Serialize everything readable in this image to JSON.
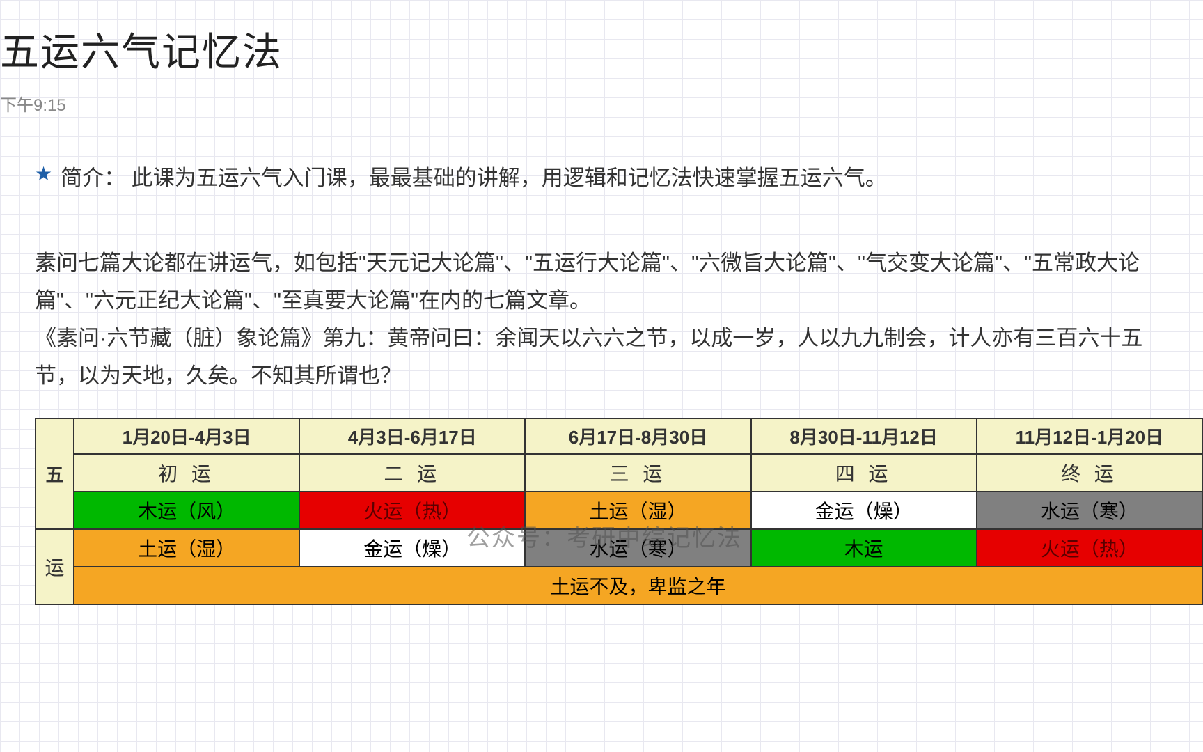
{
  "title": "五运六气记忆法",
  "timestamp": "下午9:15",
  "intro": {
    "label": "简介：",
    "text": "此课为五运六气入门课，最最基础的讲解，用逻辑和记忆法快速掌握五运六气。"
  },
  "body": {
    "para1": "素问七篇大论都在讲运气，如包括\"天元记大论篇\"、\"五运行大论篇\"、\"六微旨大论篇\"、\"气交变大论篇\"、\"五常政大论篇\"、\"六元正纪大论篇\"、\"至真要大论篇\"在内的七篇文章。",
    "para2": "《素问·六节藏（脏）象论篇》第九：黄帝问曰：余闻天以六六之节，以成一岁，人以九九制会，计人亦有三百六十五节，以为天地，久矣。不知其所谓也？"
  },
  "table": {
    "row_header_1": "五",
    "row_header_2": "运",
    "dates": [
      "1月20日-4月3日",
      "4月3日-6月17日",
      "6月17日-8月30日",
      "8月30日-11月12日",
      "11月12日-1月20日"
    ],
    "phases": [
      "初 运",
      "二 运",
      "三 运",
      "四 运",
      "终 运"
    ],
    "row3": [
      {
        "text": "木运（风）",
        "color": "green"
      },
      {
        "text": "火运（热）",
        "color": "red"
      },
      {
        "text": "土运（湿）",
        "color": "orange"
      },
      {
        "text": "金运（燥）",
        "color": "white"
      },
      {
        "text": "水运（寒）",
        "color": "gray"
      }
    ],
    "row4": [
      {
        "text": "土运（湿）",
        "color": "orange"
      },
      {
        "text": "金运（燥）",
        "color": "white"
      },
      {
        "text": "水运（寒）",
        "color": "gray"
      },
      {
        "text": "木运",
        "color": "green"
      },
      {
        "text": "火运（热）",
        "color": "red"
      }
    ],
    "summary": "土运不及，卑监之年"
  },
  "watermark": "公众号：考研中综记忆法",
  "colors": {
    "grid": "#e8e8f0",
    "title": "#222222",
    "timestamp": "#888888",
    "body": "#333333",
    "star": "#1e5fa8",
    "table_yellow": "#f5f3c8",
    "green": "#00b800",
    "red": "#e60000",
    "orange": "#f5a623",
    "white": "#ffffff",
    "gray": "#808080",
    "border": "#333333"
  }
}
